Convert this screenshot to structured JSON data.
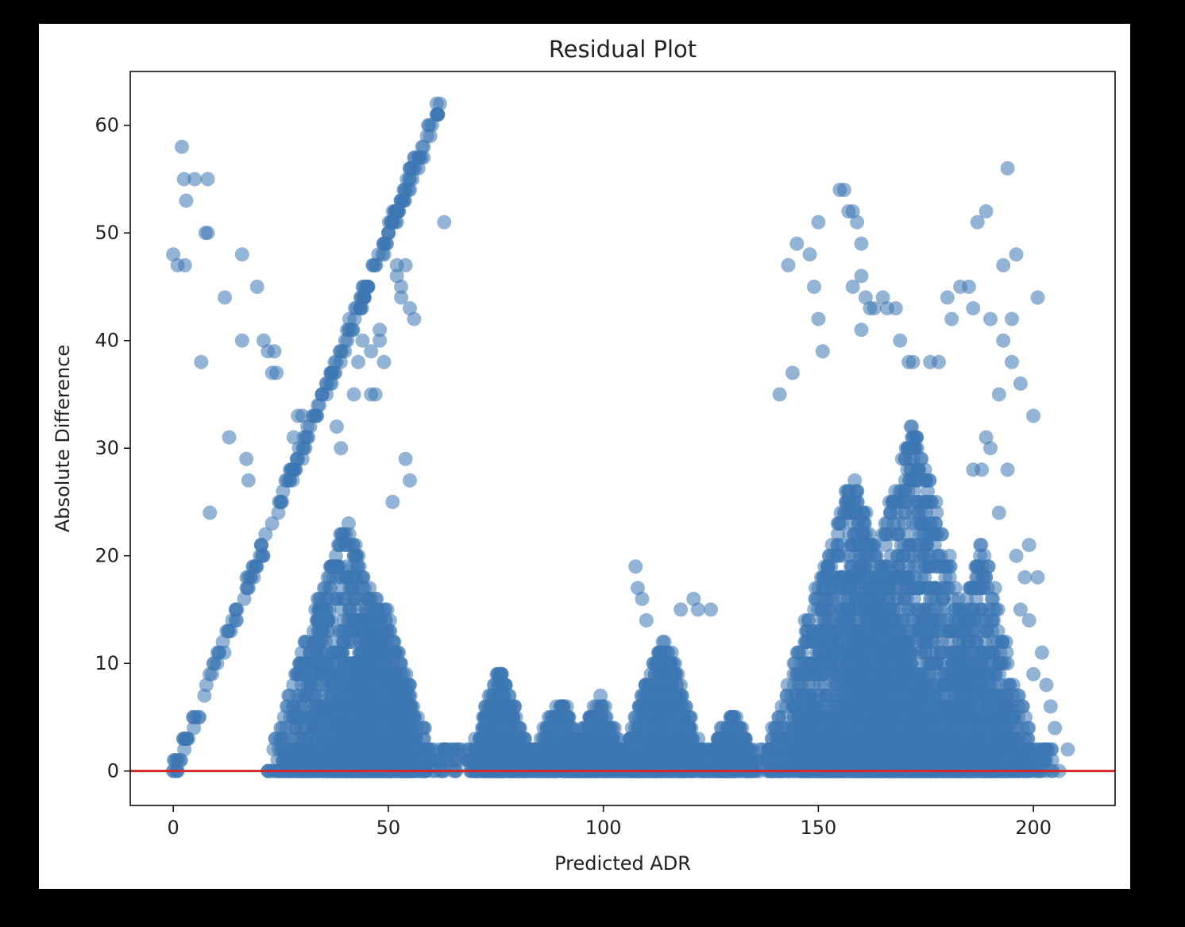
{
  "chart_data": {
    "type": "scatter",
    "title": "Residual Plot",
    "xlabel": "Predicted ADR",
    "ylabel": "Absolute Difference",
    "xlim": [
      -10,
      219
    ],
    "ylim": [
      -3.2,
      65
    ],
    "xticks": [
      0,
      50,
      100,
      150,
      200
    ],
    "yticks": [
      0,
      10,
      20,
      30,
      40,
      50,
      60
    ],
    "grid": false,
    "legend": "none",
    "point_color": "#3d76b2",
    "point_alpha": 0.55,
    "reference_line": {
      "y": 0,
      "color": "#d62728"
    },
    "series": [
      {
        "points": [
          [
            0,
            48
          ],
          [
            1,
            47
          ],
          [
            2,
            58
          ],
          [
            2.5,
            55
          ],
          [
            3,
            53
          ],
          [
            2.7,
            47
          ],
          [
            5,
            55
          ],
          [
            8,
            55
          ],
          [
            7.5,
            50
          ],
          [
            8,
            50
          ],
          [
            6.5,
            38
          ],
          [
            8.5,
            24
          ],
          [
            12,
            44
          ],
          [
            13,
            31
          ],
          [
            16,
            48
          ],
          [
            16,
            40
          ],
          [
            17,
            29
          ],
          [
            17.5,
            27
          ],
          [
            19.5,
            45
          ],
          [
            21,
            40
          ],
          [
            22,
            39
          ],
          [
            23,
            37
          ],
          [
            23.5,
            39
          ],
          [
            24,
            37
          ],
          [
            29,
            33
          ],
          [
            30,
            33
          ],
          [
            28,
            31
          ],
          [
            29,
            29
          ],
          [
            38,
            32
          ],
          [
            39,
            30
          ],
          [
            42,
            35
          ],
          [
            43,
            38
          ],
          [
            44,
            40
          ],
          [
            46,
            35
          ],
          [
            47,
            35
          ],
          [
            46,
            39
          ],
          [
            48,
            40
          ],
          [
            48,
            41
          ],
          [
            49,
            38
          ],
          [
            51,
            25
          ],
          [
            50,
            50
          ],
          [
            51,
            51
          ],
          [
            52,
            51
          ],
          [
            53,
            53
          ],
          [
            54,
            54
          ],
          [
            55,
            55
          ],
          [
            55,
            54
          ],
          [
            55,
            56
          ],
          [
            56,
            57
          ],
          [
            57,
            56
          ],
          [
            59,
            59
          ],
          [
            62,
            62
          ],
          [
            63,
            51
          ],
          [
            52,
            47
          ],
          [
            52,
            46
          ],
          [
            53,
            45
          ],
          [
            53,
            44
          ],
          [
            54,
            47
          ],
          [
            55,
            43
          ],
          [
            56,
            42
          ],
          [
            54,
            29
          ],
          [
            55,
            27
          ],
          [
            107.5,
            19
          ],
          [
            108,
            17
          ],
          [
            109,
            16
          ],
          [
            110,
            14
          ],
          [
            118,
            15
          ],
          [
            121,
            16
          ],
          [
            122,
            15
          ],
          [
            125,
            15
          ],
          [
            143,
            47
          ],
          [
            145,
            49
          ],
          [
            144,
            37
          ],
          [
            141,
            35
          ],
          [
            148,
            48
          ],
          [
            150,
            51
          ],
          [
            149,
            45
          ],
          [
            150,
            42
          ],
          [
            151,
            39
          ],
          [
            155,
            54
          ],
          [
            156,
            54
          ],
          [
            157,
            52
          ],
          [
            158,
            52
          ],
          [
            158,
            45
          ],
          [
            159,
            51
          ],
          [
            160,
            49
          ],
          [
            160,
            46
          ],
          [
            161,
            44
          ],
          [
            160,
            41
          ],
          [
            162,
            43
          ],
          [
            163,
            43
          ],
          [
            166,
            43
          ],
          [
            168,
            43
          ],
          [
            169,
            40
          ],
          [
            165,
            44
          ],
          [
            171,
            38
          ],
          [
            172,
            38
          ],
          [
            176,
            38
          ],
          [
            178,
            38
          ],
          [
            180,
            44
          ],
          [
            181,
            42
          ],
          [
            183,
            45
          ],
          [
            185,
            45
          ],
          [
            186,
            43
          ],
          [
            187,
            51
          ],
          [
            189,
            52
          ],
          [
            193,
            47
          ],
          [
            194,
            56
          ],
          [
            195,
            42
          ],
          [
            196,
            48
          ],
          [
            197,
            36
          ],
          [
            201,
            44
          ],
          [
            200,
            33
          ],
          [
            199,
            21
          ],
          [
            201,
            18
          ],
          [
            202,
            11
          ],
          [
            203,
            8
          ],
          [
            204,
            6
          ],
          [
            205,
            4
          ],
          [
            208,
            2
          ],
          [
            206,
            0
          ],
          [
            190,
            42
          ],
          [
            192,
            35
          ],
          [
            195,
            38
          ],
          [
            193,
            40
          ],
          [
            189,
            31
          ],
          [
            190,
            30
          ],
          [
            188,
            28
          ],
          [
            186,
            28
          ],
          [
            194,
            28
          ],
          [
            192,
            24
          ],
          [
            196,
            20
          ],
          [
            198,
            18
          ],
          [
            199,
            14
          ],
          [
            200,
            9
          ],
          [
            197,
            15
          ]
        ]
      }
    ],
    "clusters": [
      {
        "center": 40,
        "spread": 14,
        "peak": 24,
        "n": 1100
      },
      {
        "center": 48,
        "spread": 10,
        "peak": 17,
        "n": 700
      },
      {
        "center": 76,
        "spread": 6,
        "peak": 10,
        "n": 400
      },
      {
        "center": 90,
        "spread": 7,
        "peak": 7,
        "n": 300
      },
      {
        "center": 99,
        "spread": 6,
        "peak": 7,
        "n": 280
      },
      {
        "center": 114,
        "spread": 8,
        "peak": 13,
        "n": 500
      },
      {
        "center": 130,
        "spread": 5,
        "peak": 6,
        "n": 220
      },
      {
        "center": 158,
        "spread": 16,
        "peak": 28,
        "n": 1500
      },
      {
        "center": 172,
        "spread": 16,
        "peak": 33,
        "n": 1500
      },
      {
        "center": 188,
        "spread": 10,
        "peak": 22,
        "n": 600
      }
    ],
    "diagonal_band": {
      "x_from": 0,
      "x_to": 62,
      "slope": 1,
      "n": 220
    }
  }
}
